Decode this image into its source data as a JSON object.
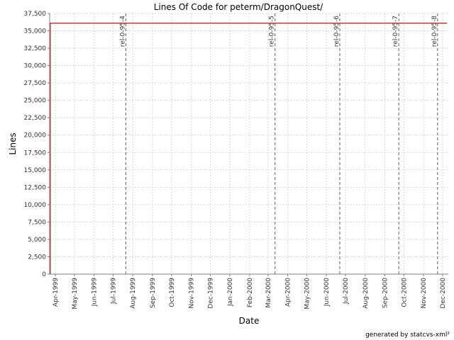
{
  "chart_data": {
    "type": "line",
    "title": "Lines Of Code for peterm/DragonQuest/",
    "xlabel": "Date",
    "ylabel": "Lines",
    "x_ticks": [
      "Apr-1999",
      "May-1999",
      "Jun-1999",
      "Jul-1999",
      "Aug-1999",
      "Sep-1999",
      "Oct-1999",
      "Nov-1999",
      "Dec-1999",
      "Jan-2000",
      "Feb-2000",
      "Mar-2000",
      "Apr-2000",
      "May-2000",
      "Jun-2000",
      "Jul-2000",
      "Aug-2000",
      "Sep-2000",
      "Oct-2000",
      "Nov-2000",
      "Dec-2000"
    ],
    "y_ticks": [
      "0",
      "2,500",
      "5,000",
      "7,500",
      "10,000",
      "12,500",
      "15,000",
      "17,500",
      "20,000",
      "22,500",
      "25,000",
      "27,500",
      "30,000",
      "32,500",
      "35,000",
      "37,500"
    ],
    "ylim": [
      0,
      37500
    ],
    "xlim": [
      "1999-03-23",
      "2000-12-10"
    ],
    "grid": true,
    "series": [
      {
        "color": "#c0282a",
        "points": [
          {
            "x": "1999-03-24",
            "y": 0
          },
          {
            "x": "1999-03-24",
            "y": 36100
          },
          {
            "x": "2000-12-08",
            "y": 36100
          }
        ]
      }
    ],
    "markers": [
      {
        "label": "rel-0-95-4",
        "x": "1999-07-21"
      },
      {
        "label": "rel-0-95-5",
        "x": "2000-03-12"
      },
      {
        "label": "rel-0-95-6",
        "x": "2000-06-22"
      },
      {
        "label": "rel-0-95-7",
        "x": "2000-09-23"
      },
      {
        "label": "rel-0-95-8",
        "x": "2000-11-23"
      }
    ]
  },
  "footer": "generated by statcvs-xml²"
}
